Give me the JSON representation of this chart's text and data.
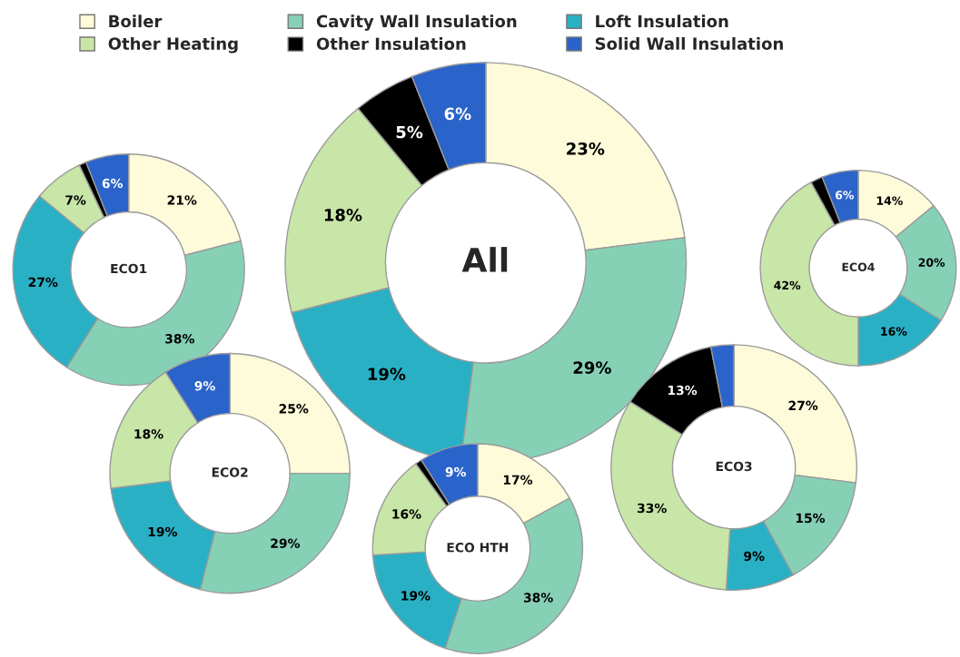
{
  "chart_data": [
    {
      "type": "donut",
      "title": "ECO1",
      "categories": [
        "Boiler",
        "Cavity Wall Insulation",
        "Loft Insulation",
        "Other Heating",
        "Other Insulation",
        "Solid Wall Insulation"
      ],
      "values": [
        21,
        38,
        27,
        7,
        1,
        6
      ],
      "value_labels": [
        "21%",
        "38%",
        "27%",
        "7%",
        null,
        "6%"
      ],
      "colors": [
        "#fdfbd9",
        "#86d1b6",
        "#2ab0c5",
        "#c8e6a8",
        "#000000",
        "#2a63c9"
      ],
      "legend": "top"
    },
    {
      "type": "donut",
      "title": "All",
      "categories": [
        null,
        null,
        null,
        null,
        null,
        null
      ],
      "values": [
        23,
        29,
        19,
        18,
        5,
        6
      ],
      "value_labels": [
        "23%",
        "29%",
        "19%",
        "18%",
        "5%",
        "6%"
      ],
      "colors": [
        "#fdfbd9",
        "#86d1b6",
        "#2ab0c5",
        "#c8e6a8",
        "#000000",
        "#2a63c9"
      ]
    },
    {
      "type": "donut",
      "title": "ECO4",
      "categories": [
        null,
        null,
        null,
        null,
        null,
        null
      ],
      "values": [
        14,
        20,
        16,
        42,
        2,
        6
      ],
      "value_labels": [
        "14%",
        "20%",
        "16%",
        "42%",
        null,
        "6%"
      ],
      "colors": [
        "#fdfbd9",
        "#86d1b6",
        "#2ab0c5",
        "#c8e6a8",
        "#000000",
        "#2a63c9"
      ]
    },
    {
      "type": "donut",
      "title": "ECO2",
      "categories": [
        null,
        null,
        null,
        null,
        null
      ],
      "values": [
        25,
        29,
        19,
        18,
        9
      ],
      "value_labels": [
        "25%",
        "29%",
        "19%",
        "18%",
        "9%"
      ],
      "colors": [
        "#fdfbd9",
        "#86d1b6",
        "#2ab0c5",
        "#c8e6a8",
        "#2a63c9"
      ]
    },
    {
      "type": "donut",
      "title": "ECO3",
      "categories": [
        null,
        null,
        null,
        null,
        null,
        null
      ],
      "values": [
        27,
        15,
        9,
        33,
        13,
        3
      ],
      "value_labels": [
        "27%",
        "15%",
        "9%",
        "33%",
        "13%",
        null
      ],
      "colors": [
        "#fdfbd9",
        "#86d1b6",
        "#2ab0c5",
        "#c8e6a8",
        "#000000",
        "#2a63c9"
      ]
    },
    {
      "type": "donut",
      "title": "ECO HTH",
      "categories": [
        null,
        null,
        null,
        null,
        null,
        null
      ],
      "values": [
        17,
        38,
        19,
        16,
        1,
        9
      ],
      "value_labels": [
        "17%",
        "38%",
        "19%",
        "16%",
        null,
        "9%"
      ],
      "colors": [
        "#fdfbd9",
        "#86d1b6",
        "#2ab0c5",
        "#c8e6a8",
        "#000000",
        "#2a63c9"
      ]
    }
  ]
}
